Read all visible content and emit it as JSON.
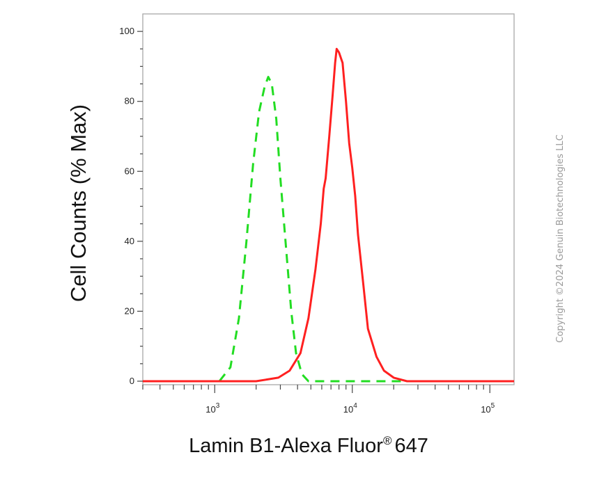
{
  "chart_data": {
    "type": "line",
    "xlabel": "Lamin B1-Alexa Fluor",
    "xlabel_reg": "®",
    "xlabel_suffix": "647",
    "ylabel": "Cell Counts (% Max)",
    "xscale": "log",
    "xlim": [
      300,
      150000
    ],
    "ylim": [
      -1,
      105
    ],
    "y_ticks": [
      0,
      20,
      40,
      60,
      80,
      100
    ],
    "x_ticks": [
      {
        "value": 1000,
        "base": "10",
        "exp": "3"
      },
      {
        "value": 10000,
        "base": "10",
        "exp": "4"
      },
      {
        "value": 100000,
        "base": "10",
        "exp": "5"
      }
    ],
    "grid": false,
    "legend": "none",
    "series": [
      {
        "color": "#22dd22",
        "style": "dashed",
        "points": [
          [
            300,
            0
          ],
          [
            1080,
            0
          ],
          [
            1300,
            4
          ],
          [
            1500,
            18
          ],
          [
            1700,
            40
          ],
          [
            1900,
            62
          ],
          [
            2100,
            77
          ],
          [
            2300,
            84
          ],
          [
            2450,
            87
          ],
          [
            2600,
            85
          ],
          [
            2800,
            75
          ],
          [
            3000,
            58
          ],
          [
            3300,
            38
          ],
          [
            3600,
            20
          ],
          [
            3900,
            8
          ],
          [
            4300,
            2
          ],
          [
            4800,
            0
          ],
          [
            10000,
            0
          ],
          [
            150000,
            0
          ]
        ]
      },
      {
        "color": "#ff2020",
        "style": "solid",
        "points": [
          [
            300,
            0
          ],
          [
            2000,
            0
          ],
          [
            2400,
            0.5
          ],
          [
            2900,
            1
          ],
          [
            3500,
            3
          ],
          [
            4200,
            8
          ],
          [
            4800,
            18
          ],
          [
            5400,
            32
          ],
          [
            5900,
            45
          ],
          [
            6200,
            55
          ],
          [
            6400,
            58
          ],
          [
            6800,
            70
          ],
          [
            7200,
            82
          ],
          [
            7500,
            91
          ],
          [
            7700,
            95
          ],
          [
            8000,
            94
          ],
          [
            8500,
            91
          ],
          [
            9000,
            80
          ],
          [
            9500,
            68
          ],
          [
            10000,
            61
          ],
          [
            10500,
            53
          ],
          [
            11000,
            42
          ],
          [
            12000,
            28
          ],
          [
            13000,
            15
          ],
          [
            15000,
            7
          ],
          [
            17000,
            3
          ],
          [
            20000,
            1
          ],
          [
            25000,
            0
          ],
          [
            150000,
            0
          ]
        ]
      }
    ]
  },
  "watermark": "Copyright ©2024 Genuin Biotechnologies LLC"
}
